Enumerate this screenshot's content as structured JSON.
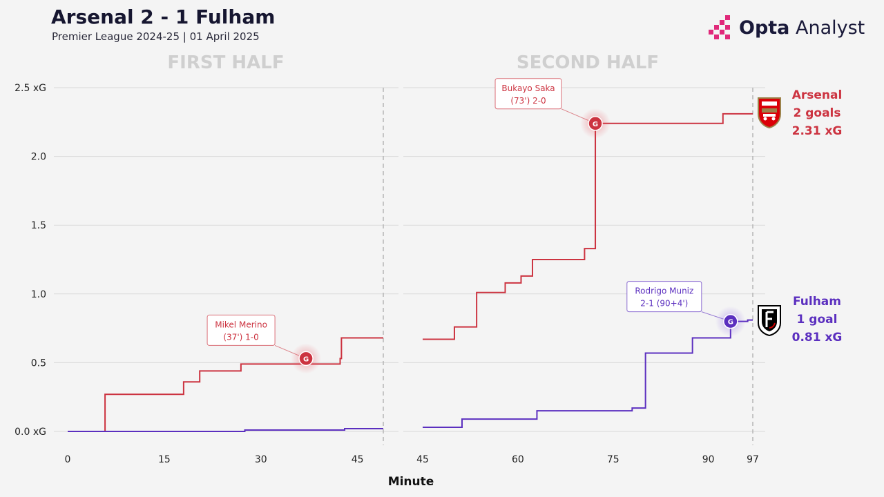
{
  "header": {
    "title": "Arsenal 2 - 1 Fulham",
    "subtitle": "Premier League 2024-25 | 01 April 2025"
  },
  "brand": {
    "name_bold": "Opta",
    "name_light": "Analyst"
  },
  "teams": {
    "arsenal": {
      "name": "Arsenal",
      "goals": "2 goals",
      "xg": "2.31 xG",
      "color": "#cc3340"
    },
    "fulham": {
      "name": "Fulham",
      "goals": "1 goal",
      "xg": "0.81 xG",
      "color": "#5b2fbf"
    }
  },
  "chart_data": {
    "type": "line",
    "xlabel": "Minute",
    "ylim": [
      0,
      2.5
    ],
    "yticks": [
      {
        "value": 0,
        "label": "0.0 xG"
      },
      {
        "value": 0.5,
        "label": "0.5"
      },
      {
        "value": 1.0,
        "label": "1.0"
      },
      {
        "value": 1.5,
        "label": "1.5"
      },
      {
        "value": 2.0,
        "label": "2.0"
      },
      {
        "value": 2.5,
        "label": "2.5 xG"
      }
    ],
    "grid": true,
    "panels": [
      {
        "label": "FIRST HALF",
        "xlim": [
          0,
          49
        ],
        "xticks": [
          0,
          15,
          30,
          45
        ],
        "end_line": 49,
        "series": [
          {
            "team": "arsenal",
            "steps": [
              [
                0,
                0
              ],
              [
                5.8,
                0.27
              ],
              [
                18,
                0.36
              ],
              [
                20.5,
                0.44
              ],
              [
                26.9,
                0.49
              ],
              [
                42.3,
                0.53
              ],
              [
                42.5,
                0.68
              ],
              [
                49,
                0.68
              ]
            ],
            "goals": [
              {
                "x": 37,
                "y": 0.53,
                "name": "Mikel Merino",
                "detail": "(37') 1-0",
                "callout": "left"
              }
            ]
          },
          {
            "team": "fulham",
            "steps": [
              [
                0,
                0
              ],
              [
                27.5,
                0.01
              ],
              [
                43,
                0.02
              ],
              [
                49,
                0.02
              ]
            ],
            "goals": []
          }
        ]
      },
      {
        "label": "SECOND HALF",
        "xlim": [
          45,
          97
        ],
        "xticks": [
          45,
          60,
          75,
          90,
          97
        ],
        "end_line": 97,
        "series": [
          {
            "team": "arsenal",
            "steps": [
              [
                45,
                0.67
              ],
              [
                50,
                0.76
              ],
              [
                53.5,
                1.01
              ],
              [
                58,
                1.08
              ],
              [
                60.5,
                1.13
              ],
              [
                62.3,
                1.25
              ],
              [
                70.5,
                1.33
              ],
              [
                72.2,
                1.52
              ],
              [
                72.2,
                2.24
              ],
              [
                92.3,
                2.31
              ],
              [
                97,
                2.31
              ]
            ],
            "goals": [
              {
                "x": 72.2,
                "y": 2.24,
                "name": "Bukayo Saka",
                "detail": "(73') 2-0",
                "callout": "left"
              }
            ]
          },
          {
            "team": "fulham",
            "steps": [
              [
                45,
                0.03
              ],
              [
                51.2,
                0.09
              ],
              [
                63,
                0.15
              ],
              [
                78,
                0.17
              ],
              [
                80.1,
                0.57
              ],
              [
                87.5,
                0.68
              ],
              [
                93.5,
                0.8
              ],
              [
                96.2,
                0.81
              ],
              [
                97,
                0.81
              ]
            ],
            "goals": [
              {
                "x": 93.5,
                "y": 0.8,
                "name": "Rodrigo Muniz",
                "detail": "2-1 (90+4')",
                "callout": "left"
              }
            ]
          }
        ]
      }
    ]
  }
}
